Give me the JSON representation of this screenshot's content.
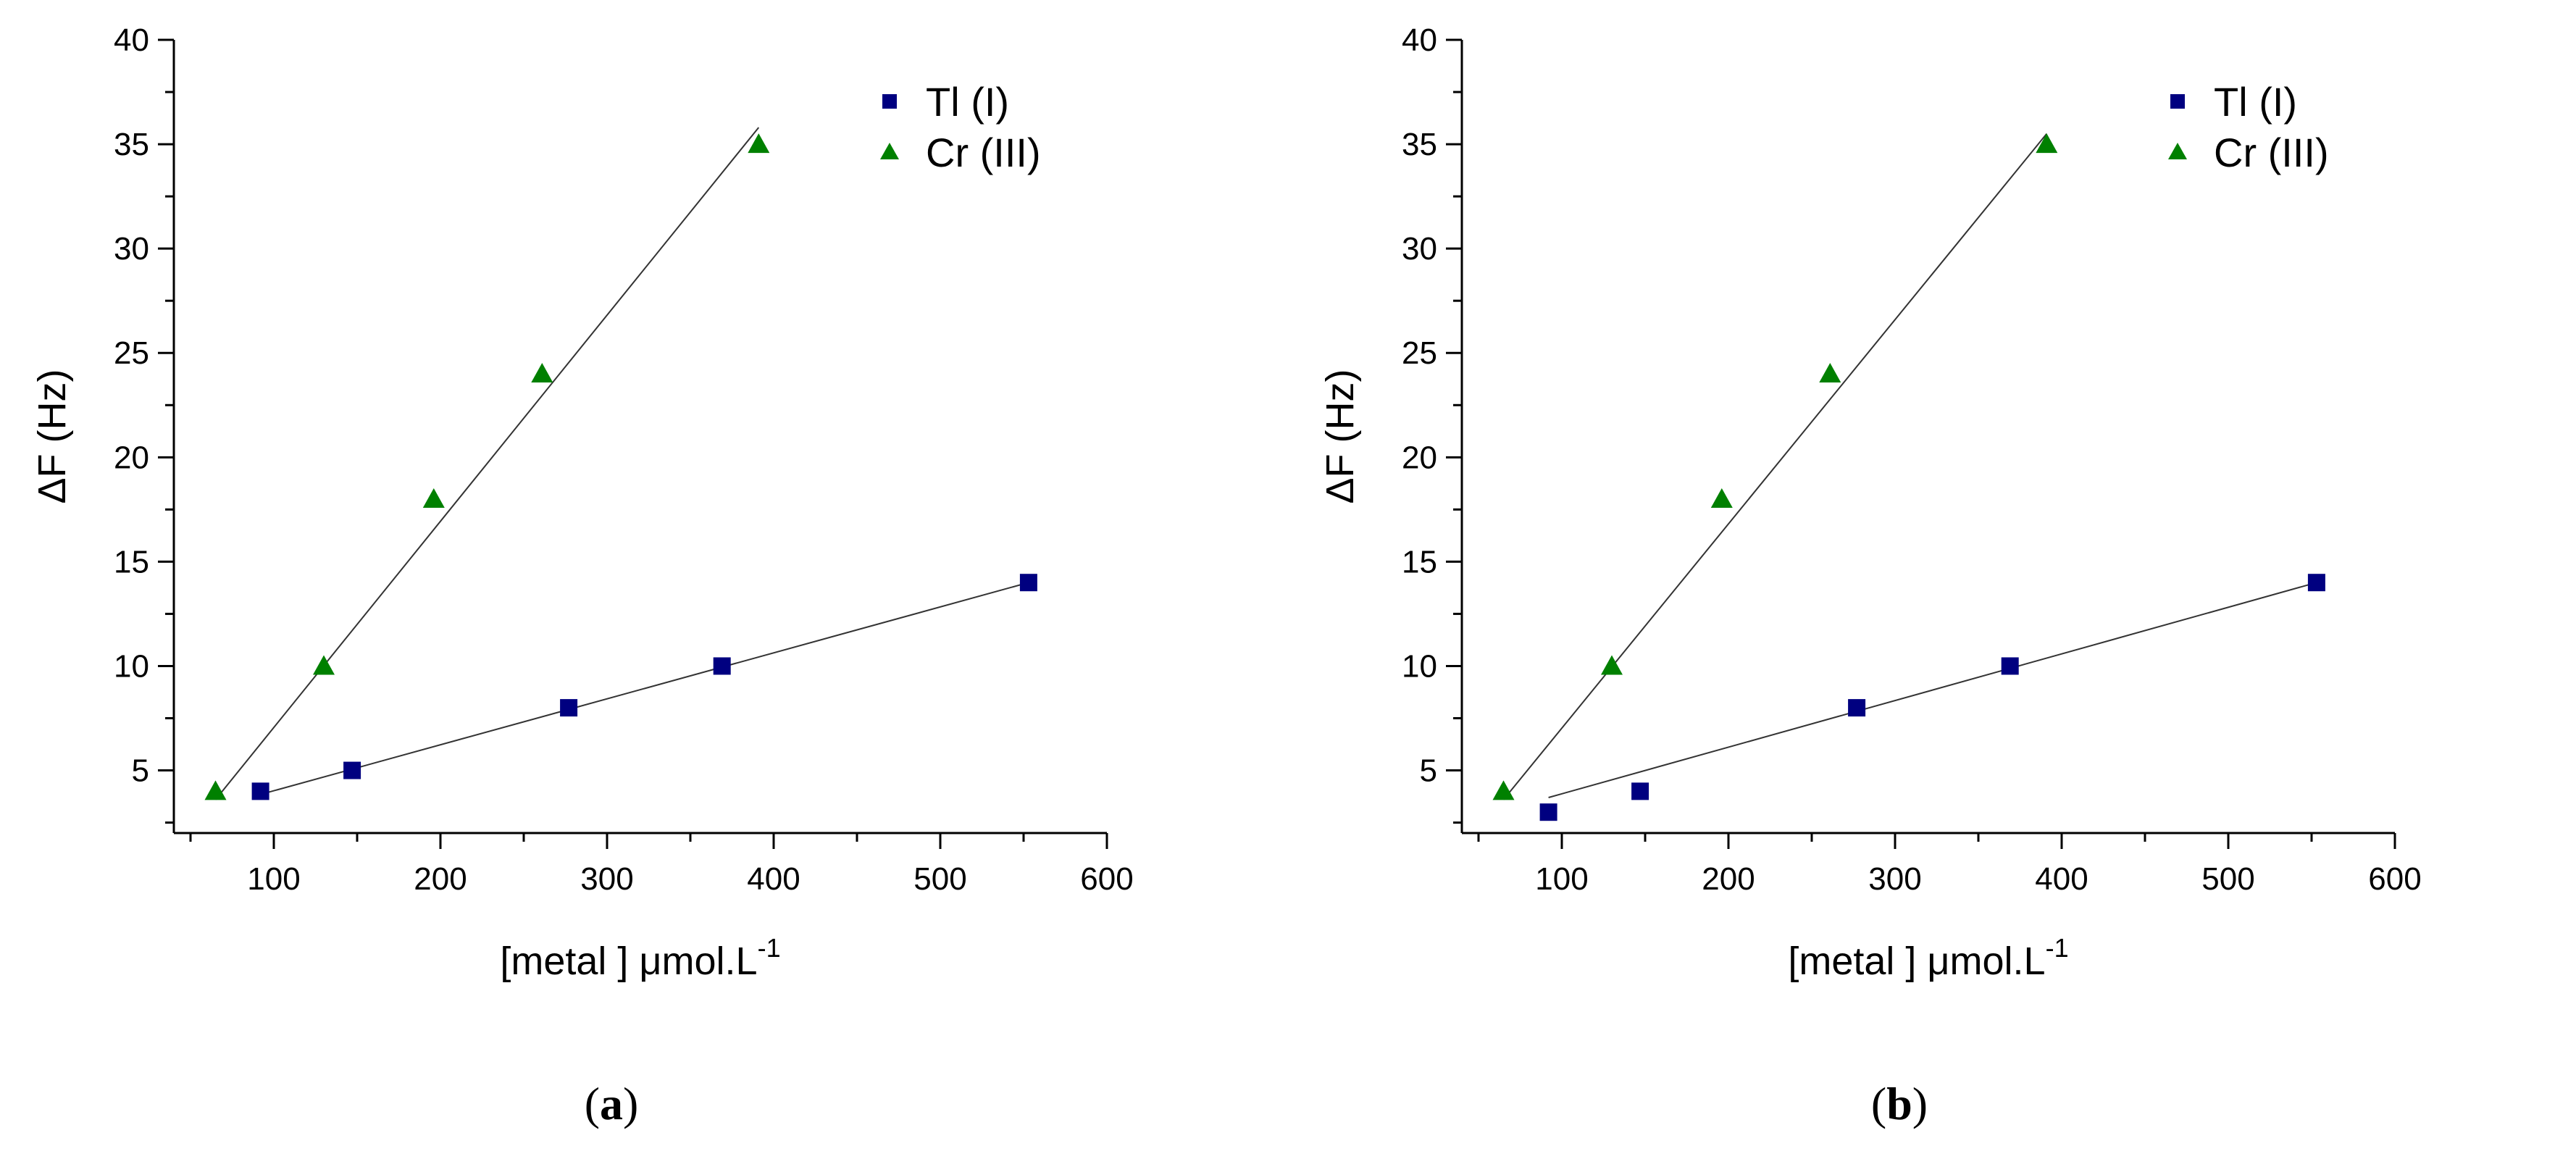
{
  "chart_data": [
    {
      "type": "scatter",
      "panel_label": "a",
      "xlabel_main": "[metal ] μmol.L",
      "xlabel_sup": "-1",
      "ylabel": "ΔF (Hz)",
      "xlim": [
        40,
        600
      ],
      "ylim": [
        2,
        40
      ],
      "x_ticks": [
        100,
        200,
        300,
        400,
        500,
        600
      ],
      "y_ticks": [
        5,
        10,
        15,
        20,
        25,
        30,
        35,
        40
      ],
      "legend_position": "top-right",
      "series": [
        {
          "name": "Tl (I)",
          "marker": "square",
          "color": "#000080",
          "x": [
            92,
            147,
            277,
            369,
            553
          ],
          "y": [
            4,
            5,
            8,
            10,
            14
          ],
          "fit": {
            "x": [
              92,
              553
            ],
            "y": [
              3.85,
              14
            ]
          }
        },
        {
          "name": "Cr (III)",
          "marker": "triangle",
          "color": "#008000",
          "x": [
            65,
            130,
            196,
            261,
            391
          ],
          "y": [
            4,
            10,
            18,
            24,
            35
          ],
          "fit": {
            "x": [
              65,
              391
            ],
            "y": [
              3.6,
              35.8
            ]
          }
        }
      ]
    },
    {
      "type": "scatter",
      "panel_label": "b",
      "xlabel_main": "[metal ] μmol.L",
      "xlabel_sup": "-1",
      "ylabel": "ΔF (Hz)",
      "xlim": [
        40,
        600
      ],
      "ylim": [
        2,
        40
      ],
      "x_ticks": [
        100,
        200,
        300,
        400,
        500,
        600
      ],
      "y_ticks": [
        5,
        10,
        15,
        20,
        25,
        30,
        35,
        40
      ],
      "legend_position": "top-right",
      "series": [
        {
          "name": "Tl (I)",
          "marker": "square",
          "color": "#000080",
          "x": [
            92,
            147,
            277,
            369,
            553
          ],
          "y": [
            3,
            4,
            8,
            10,
            14
          ],
          "fit": {
            "x": [
              92,
              553
            ],
            "y": [
              3.7,
              14
            ]
          }
        },
        {
          "name": "Cr (III)",
          "marker": "triangle",
          "color": "#008000",
          "x": [
            65,
            130,
            196,
            261,
            391
          ],
          "y": [
            4,
            10,
            18,
            24,
            35
          ],
          "fit": {
            "x": [
              65,
              391
            ],
            "y": [
              3.6,
              35.5
            ]
          }
        }
      ]
    }
  ]
}
